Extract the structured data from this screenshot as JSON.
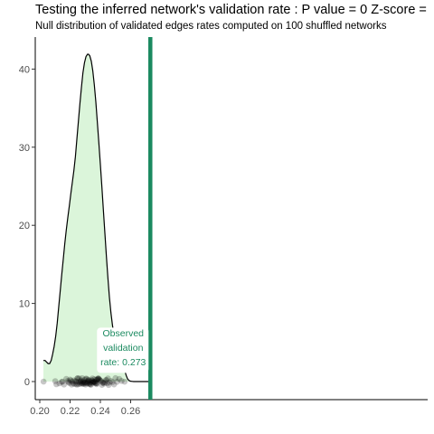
{
  "title": "Testing the inferred network's validation rate : P value = 0  Z-score =",
  "subtitle": "Null distribution of validated edges rates computed on 100 shuffled networks",
  "colors": {
    "density_fill": "#dbf5da",
    "density_line": "#000000",
    "observed_line": "#1b8a60",
    "points": "#000000"
  },
  "chart_data": {
    "type": "area",
    "title": "Testing the inferred network's validation rate : P value = 0  Z-score =",
    "subtitle": "Null distribution of validated edges rates computed on 100 shuffled networks",
    "xlabel": "",
    "ylabel": "",
    "xlim": [
      0.2,
      0.276
    ],
    "ylim": [
      0,
      44
    ],
    "grid": false,
    "x_ticks": [
      "0.20",
      "0.22",
      "0.24",
      "0.26"
    ],
    "y_ticks": [
      "0",
      "10",
      "20",
      "30",
      "40"
    ],
    "density_curve": {
      "x": [
        0.2024,
        0.2035,
        0.2045,
        0.2055,
        0.2065,
        0.2075,
        0.2085,
        0.2095,
        0.2105,
        0.2115,
        0.2125,
        0.2135,
        0.2145,
        0.2155,
        0.2165,
        0.2175,
        0.2185,
        0.2195,
        0.2205,
        0.2215,
        0.2225,
        0.2235,
        0.2245,
        0.2255,
        0.2265,
        0.2275,
        0.2285,
        0.2295,
        0.2305,
        0.2315,
        0.2322,
        0.233,
        0.234,
        0.235,
        0.236,
        0.237,
        0.238,
        0.239,
        0.24,
        0.241,
        0.242,
        0.243,
        0.244,
        0.245,
        0.246,
        0.247,
        0.248,
        0.249,
        0.25,
        0.251,
        0.252,
        0.253,
        0.254,
        0.255,
        0.256,
        0.257,
        0.258,
        0.259,
        0.26,
        0.261,
        0.262,
        0.264,
        0.266,
        0.268,
        0.27,
        0.272,
        0.2735
      ],
      "y": [
        2.7,
        2.7,
        2.5,
        2.3,
        2.3,
        2.7,
        3.5,
        4.5,
        5.8,
        7.5,
        9.5,
        11.6,
        13.7,
        15.7,
        17.6,
        19.4,
        21.0,
        22.5,
        24.0,
        25.5,
        27.0,
        28.8,
        31.0,
        33.3,
        35.6,
        37.7,
        39.5,
        40.8,
        41.6,
        41.9,
        41.9,
        41.7,
        41.0,
        39.8,
        38.0,
        35.8,
        33.3,
        30.6,
        27.8,
        24.9,
        22.0,
        19.0,
        16.0,
        13.2,
        10.8,
        8.8,
        7.2,
        6.0,
        5.2,
        4.7,
        4.3,
        3.8,
        3.2,
        2.4,
        1.5,
        0.8,
        0.35,
        0.12,
        0.05,
        0.02,
        0.0,
        0.0,
        0.0,
        0.0,
        0.0,
        0.0,
        0.0
      ]
    },
    "null_rates": [
      0.2025,
      0.2102,
      0.211,
      0.213,
      0.2145,
      0.215,
      0.216,
      0.2175,
      0.2185,
      0.219,
      0.2195,
      0.22,
      0.2205,
      0.221,
      0.2215,
      0.222,
      0.2225,
      0.223,
      0.2235,
      0.224,
      0.2242,
      0.2245,
      0.2248,
      0.225,
      0.2255,
      0.2258,
      0.226,
      0.2265,
      0.2268,
      0.227,
      0.2272,
      0.2275,
      0.2278,
      0.228,
      0.2282,
      0.2285,
      0.2288,
      0.229,
      0.2292,
      0.2295,
      0.2298,
      0.23,
      0.2302,
      0.2305,
      0.2308,
      0.231,
      0.2312,
      0.2315,
      0.2318,
      0.232,
      0.2322,
      0.2325,
      0.2328,
      0.233,
      0.2332,
      0.2335,
      0.2338,
      0.234,
      0.2342,
      0.2345,
      0.2348,
      0.235,
      0.2352,
      0.2355,
      0.2358,
      0.236,
      0.2362,
      0.2365,
      0.2368,
      0.237,
      0.2372,
      0.2375,
      0.2378,
      0.238,
      0.2382,
      0.2385,
      0.2388,
      0.239,
      0.2395,
      0.24,
      0.2405,
      0.241,
      0.2415,
      0.242,
      0.2425,
      0.243,
      0.2435,
      0.244,
      0.2445,
      0.245,
      0.2455,
      0.246,
      0.247,
      0.248,
      0.249,
      0.25,
      0.251,
      0.2525,
      0.254,
      0.256
    ],
    "observed": {
      "value": 0.273,
      "label_lines": [
        "Observed",
        "validation",
        "rate: 0.273"
      ]
    }
  }
}
